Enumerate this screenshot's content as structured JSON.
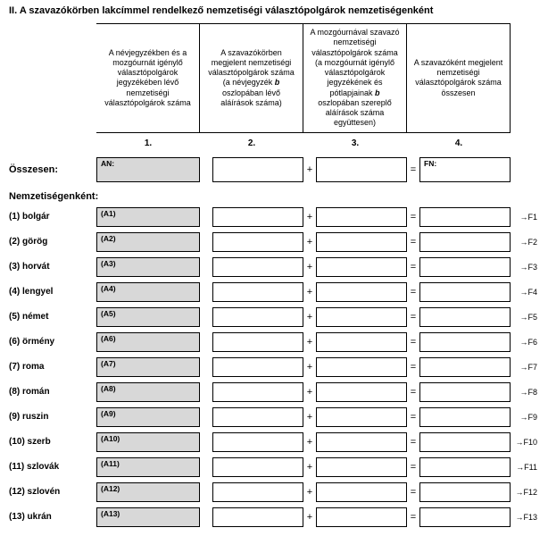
{
  "title": "II. A szavazókörben lakcímmel rendelkező nemzetiségi választópolgárok nemzetiségenként",
  "headers": {
    "col1": "A névjegyzékben és a mozgóurnát igénylő választópolgárok jegyzékében lévő nemzetiségi választópolgárok száma",
    "col2_pre": "A szavazókörben megjelent nemzetiségi választópolgárok száma (a névjegyzék ",
    "col2_bold": "b",
    "col2_post": " oszlopában lévő aláírások száma)",
    "col3_pre": "A mozgóurnával szavazó nemzetiségi választópolgárok száma (a mozgóurnát igénylő választópolgárok jegyzékének és pótlapjainak ",
    "col3_bold": "b",
    "col3_post": " oszlopában szereplő aláírások száma együttesen)",
    "col4": "A szavazóként megjelent nemzetiségi választópolgárok száma összesen"
  },
  "colnums": {
    "c1": "1.",
    "c2": "2.",
    "c3": "3.",
    "c4": "4."
  },
  "totals": {
    "label": "Összesen:",
    "left_tag": "AN:",
    "right_tag": "FN:"
  },
  "section_label": "Nemzetiségenként:",
  "symbols": {
    "plus": "+",
    "eq": "=",
    "arrow": "→"
  },
  "rows": [
    {
      "label": "(1) bolgár",
      "tag": "(A1)",
      "fref": "F1"
    },
    {
      "label": "(2) görög",
      "tag": "(A2)",
      "fref": "F2"
    },
    {
      "label": "(3) horvát",
      "tag": "(A3)",
      "fref": "F3"
    },
    {
      "label": "(4) lengyel",
      "tag": "(A4)",
      "fref": "F4"
    },
    {
      "label": "(5) német",
      "tag": "(A5)",
      "fref": "F5"
    },
    {
      "label": "(6) örmény",
      "tag": "(A6)",
      "fref": "F6"
    },
    {
      "label": "(7) roma",
      "tag": "(A7)",
      "fref": "F7"
    },
    {
      "label": "(8) román",
      "tag": "(A8)",
      "fref": "F8"
    },
    {
      "label": "(9) ruszin",
      "tag": "(A9)",
      "fref": "F9"
    },
    {
      "label": "(10) szerb",
      "tag": "(A10)",
      "fref": "F10"
    },
    {
      "label": "(11) szlovák",
      "tag": "(A11)",
      "fref": "F11"
    },
    {
      "label": "(12) szlovén",
      "tag": "(A12)",
      "fref": "F12"
    },
    {
      "label": "(13) ukrán",
      "tag": "(A13)",
      "fref": "F13"
    }
  ]
}
